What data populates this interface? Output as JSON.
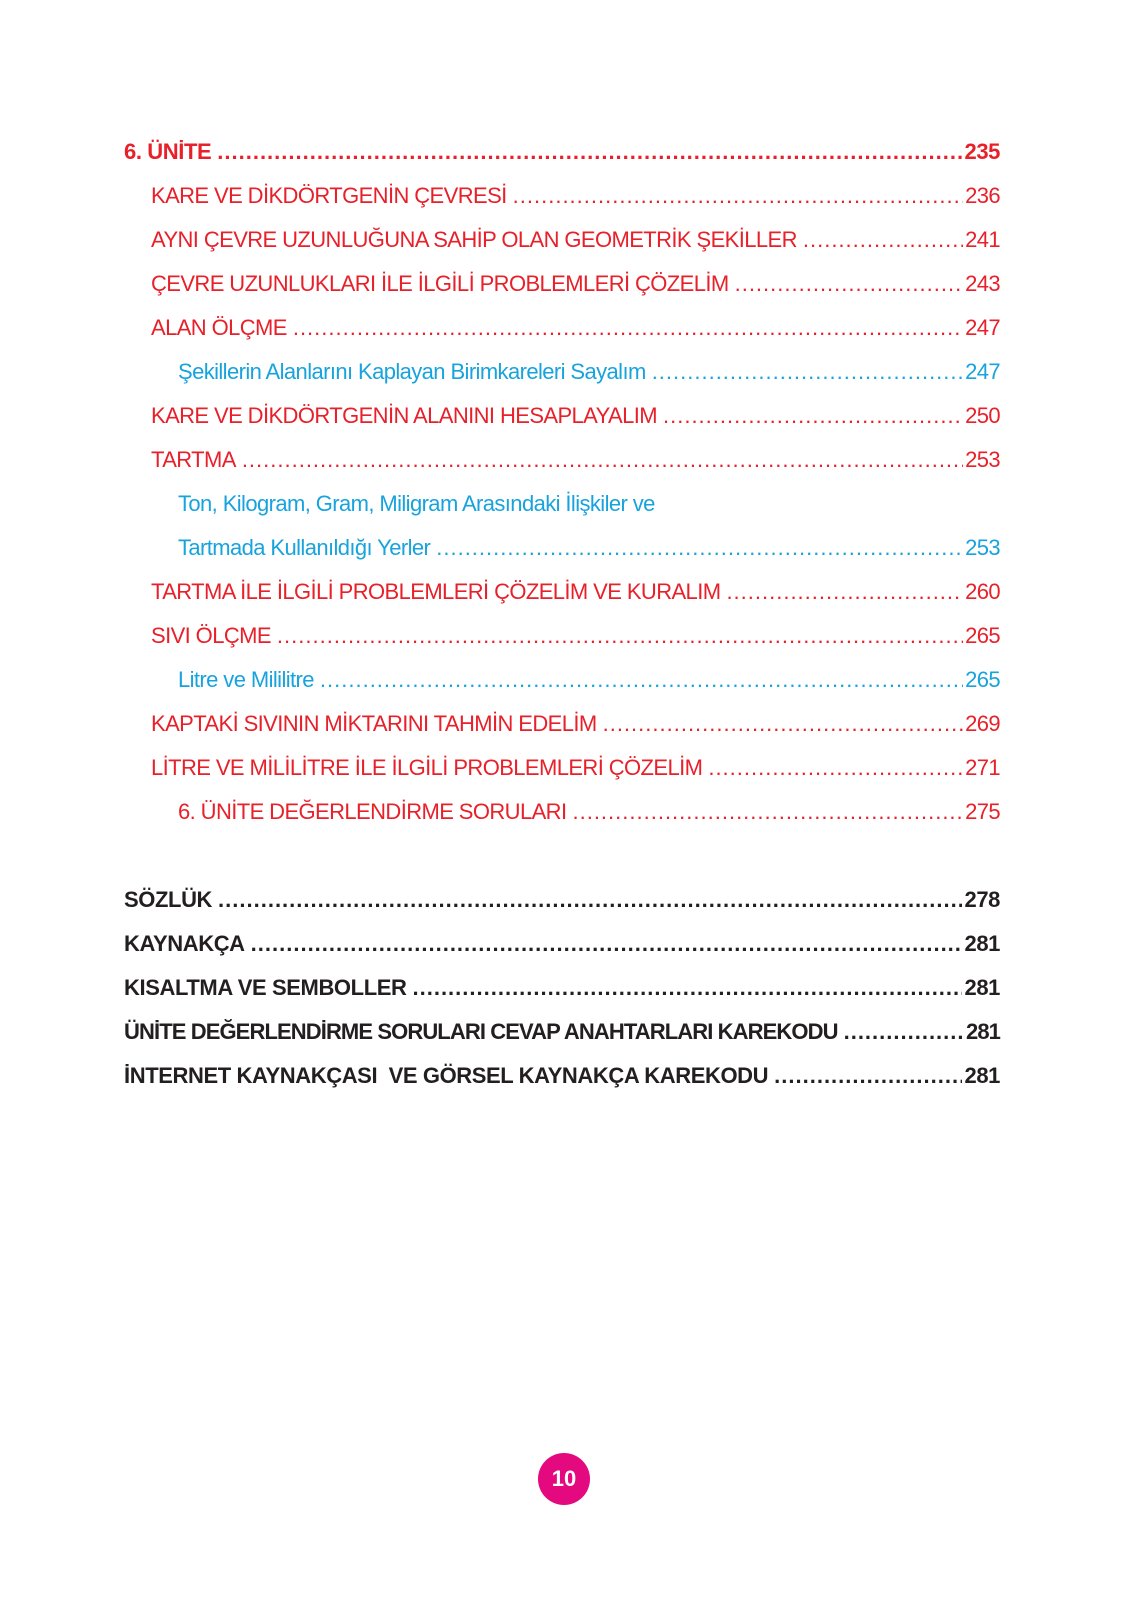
{
  "colors": {
    "unit": "#e8202a",
    "section": "#e8202a",
    "subsection": "#17a3dd",
    "appendix": "#231f20",
    "page_badge": "#e5097f"
  },
  "unit_entries": [
    {
      "label": "6. ÜNİTE",
      "page": "235"
    },
    {
      "label": "KARE VE DİKDÖRTGENİN ÇEVRESİ",
      "page": "236"
    },
    {
      "label": "AYNI ÇEVRE UZUNLUĞUNA SAHİP OLAN GEOMETRİK ŞEKİLLER",
      "page": "241"
    },
    {
      "label": "ÇEVRE UZUNLUKLARI İLE İLGİLİ PROBLEMLERİ ÇÖZELİM",
      "page": "243"
    },
    {
      "label": "ALAN ÖLÇME",
      "page": "247"
    },
    {
      "label": "Şekillerin Alanlarını Kaplayan Birimkareleri Sayalım",
      "page": "247"
    },
    {
      "label": "KARE VE DİKDÖRTGENİN ALANINI HESAPLAYALIM",
      "page": "250"
    },
    {
      "label": "TARTMA",
      "page": "253"
    },
    {
      "label_line1": "Ton, Kilogram, Gram, Miligram Arasındaki İlişkiler ve",
      "label_line2": "Tartmada Kullanıldığı Yerler",
      "page": "253"
    },
    {
      "label": "TARTMA İLE İLGİLİ PROBLEMLERİ ÇÖZELİM VE KURALIM",
      "page": "260"
    },
    {
      "label": "SIVI ÖLÇME",
      "page": "265"
    },
    {
      "label": "Litre ve Mililitre",
      "page": "265"
    },
    {
      "label": "KAPTAKİ SIVININ MİKTARINI TAHMİN EDELİM",
      "page": "269"
    },
    {
      "label": "LİTRE VE MİLİLİTRE İLE İLGİLİ PROBLEMLERİ ÇÖZELİM",
      "page": "271"
    },
    {
      "label": "6. ÜNİTE DEĞERLENDİRME SORULARI",
      "page": "275"
    }
  ],
  "appendix_entries": [
    {
      "label": "SÖZLÜK",
      "page": "278"
    },
    {
      "label": "KAYNAKÇA",
      "page": "281"
    },
    {
      "label": "KISALTMA VE SEMBOLLER",
      "page": "281"
    },
    {
      "label": "ÜNİTE DEĞERLENDİRME SORULARI CEVAP ANAHTARLARI KAREKODU",
      "page": "281"
    },
    {
      "label": "İNTERNET KAYNAKÇASI  VE GÖRSEL KAYNAKÇA KAREKODU",
      "page": "281"
    }
  ],
  "page_number": "10"
}
